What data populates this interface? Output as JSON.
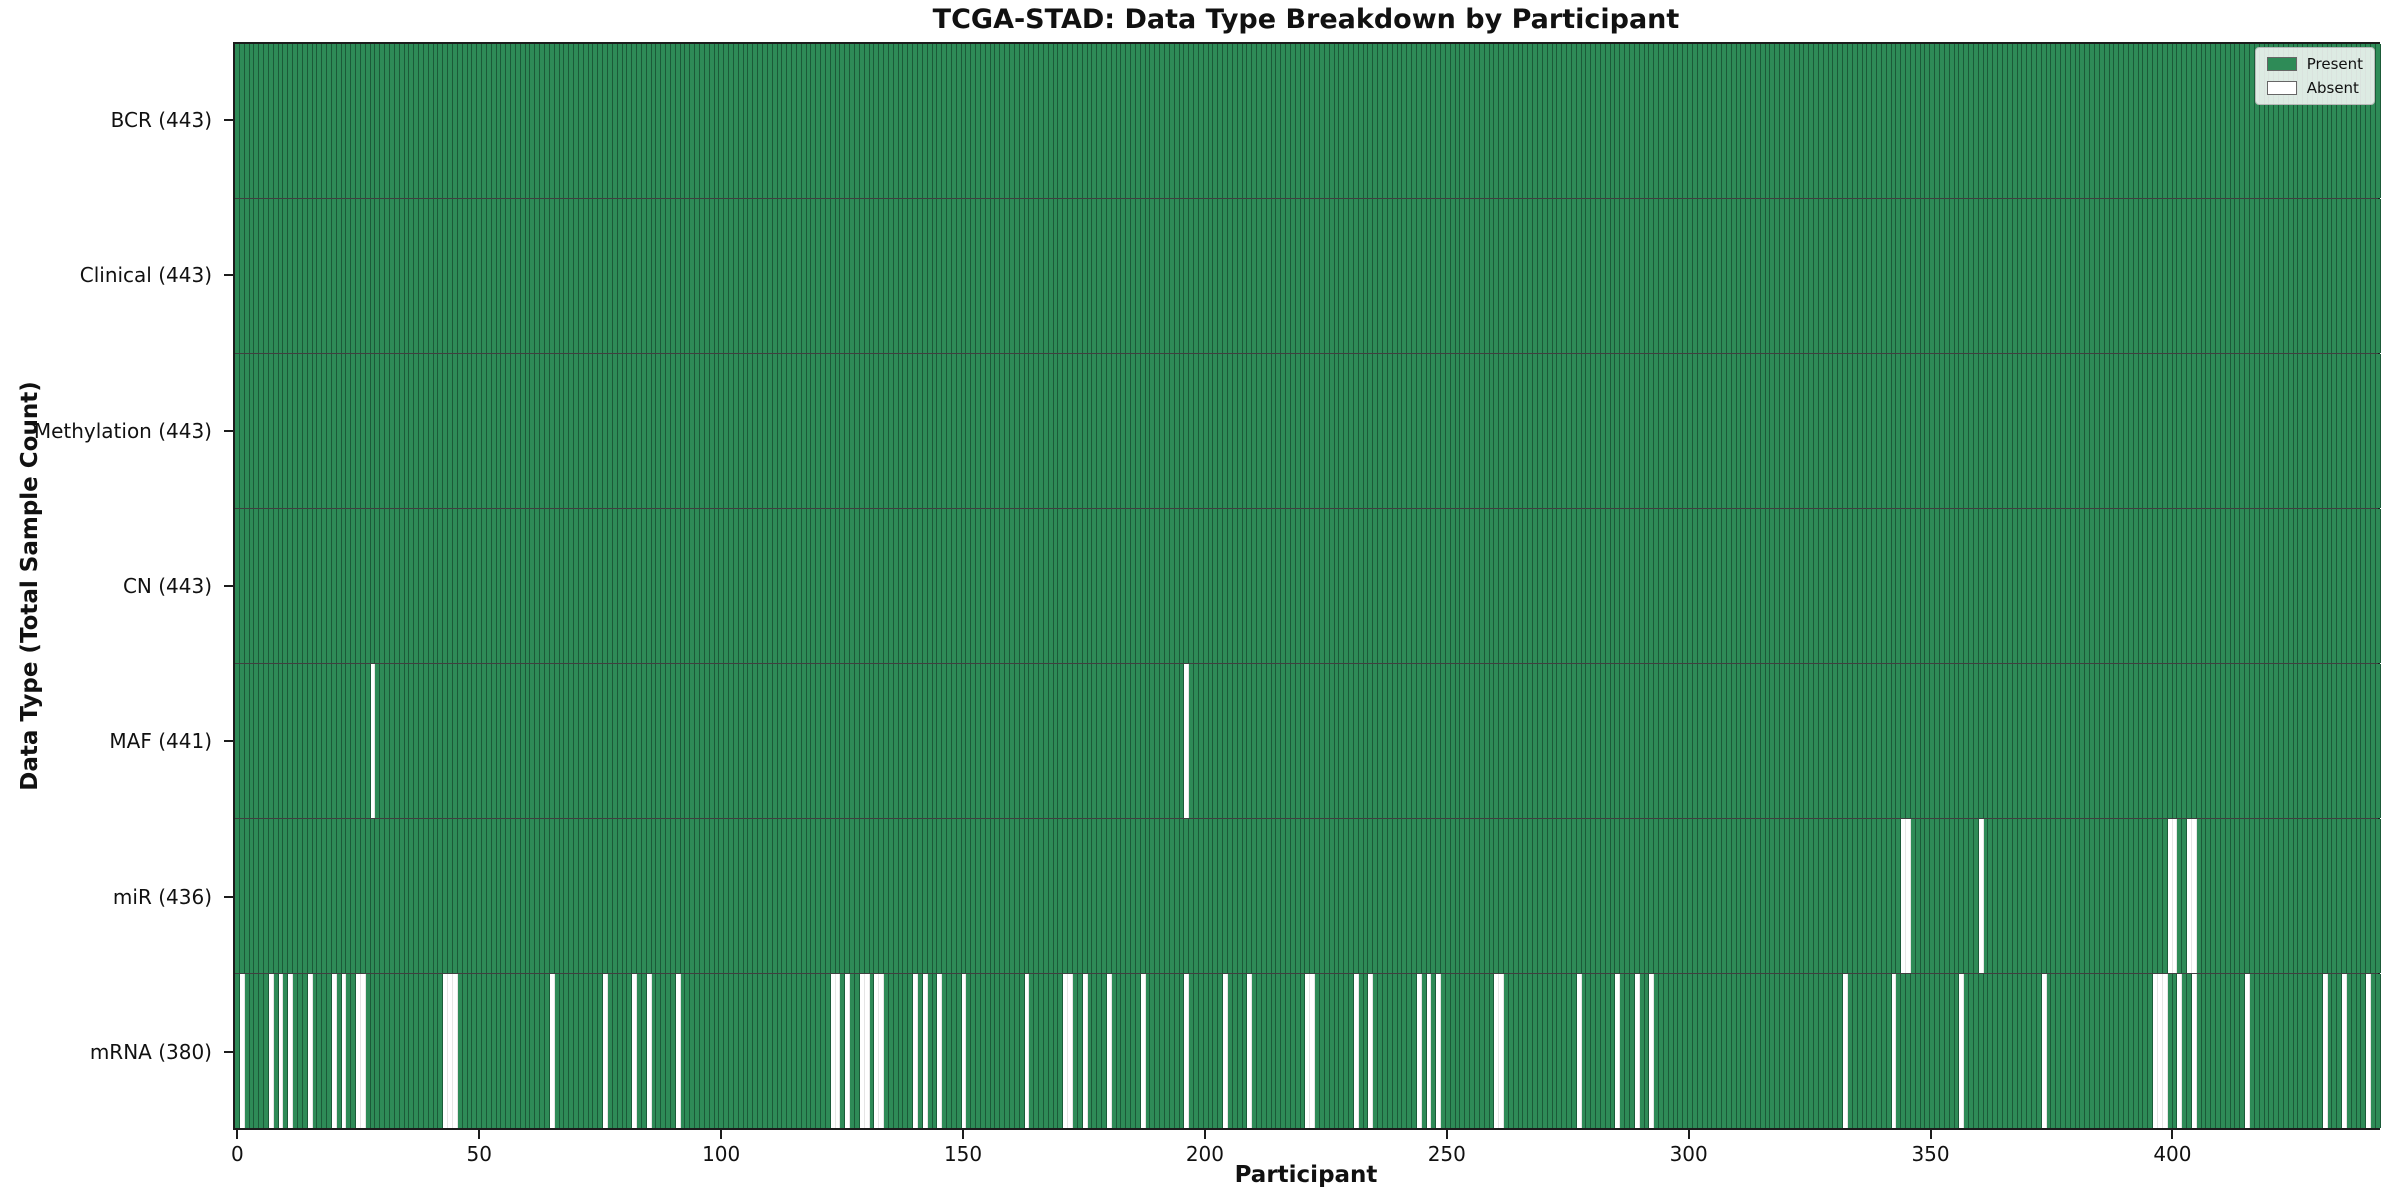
{
  "title": "TCGA-STAD: Data Type Breakdown by Participant",
  "chart_data": {
    "type": "heatmap",
    "title": "TCGA-STAD: Data Type Breakdown by Participant",
    "xlabel": "Participant",
    "ylabel": "Data Type (Total Sample Count)",
    "grid": false,
    "present_color": "#2e8b57",
    "absent_color": "#ffffff",
    "legend": {
      "position": "upper right",
      "entries": [
        {
          "label": "Present",
          "color": "#2e8b57"
        },
        {
          "label": "Absent",
          "color": "#ffffff"
        }
      ]
    },
    "x_ticks": [
      0,
      50,
      100,
      150,
      200,
      250,
      300,
      350,
      400
    ],
    "x_range": [
      0,
      443
    ],
    "n_participants": 443,
    "rows": [
      {
        "name": "BCR",
        "label": "BCR (443)",
        "present_count": 443,
        "absent_participants": []
      },
      {
        "name": "Clinical",
        "label": "Clinical (443)",
        "present_count": 443,
        "absent_participants": []
      },
      {
        "name": "Methylation",
        "label": "Methylation (443)",
        "present_count": 443,
        "absent_participants": []
      },
      {
        "name": "CN",
        "label": "CN (443)",
        "present_count": 443,
        "absent_participants": []
      },
      {
        "name": "MAF",
        "label": "MAF (441)",
        "present_count": 441,
        "absent_participants": [
          28,
          196
        ]
      },
      {
        "name": "miR",
        "label": "miR (436)",
        "present_count": 436,
        "absent_participants": [
          344,
          345,
          360,
          399,
          400,
          403,
          404
        ]
      },
      {
        "name": "mRNA",
        "label": "mRNA (380)",
        "present_count": 380,
        "absent_participants": [
          1,
          7,
          9,
          11,
          15,
          20,
          22,
          25,
          26,
          43,
          44,
          45,
          65,
          76,
          82,
          85,
          91,
          123,
          124,
          126,
          129,
          130,
          132,
          133,
          140,
          142,
          145,
          150,
          163,
          171,
          172,
          175,
          180,
          187,
          196,
          204,
          209,
          221,
          222,
          231,
          234,
          244,
          246,
          248,
          260,
          261,
          277,
          285,
          289,
          292,
          332,
          342,
          356,
          373,
          396,
          397,
          398,
          401,
          404,
          415,
          431,
          435,
          440
        ]
      }
    ]
  }
}
